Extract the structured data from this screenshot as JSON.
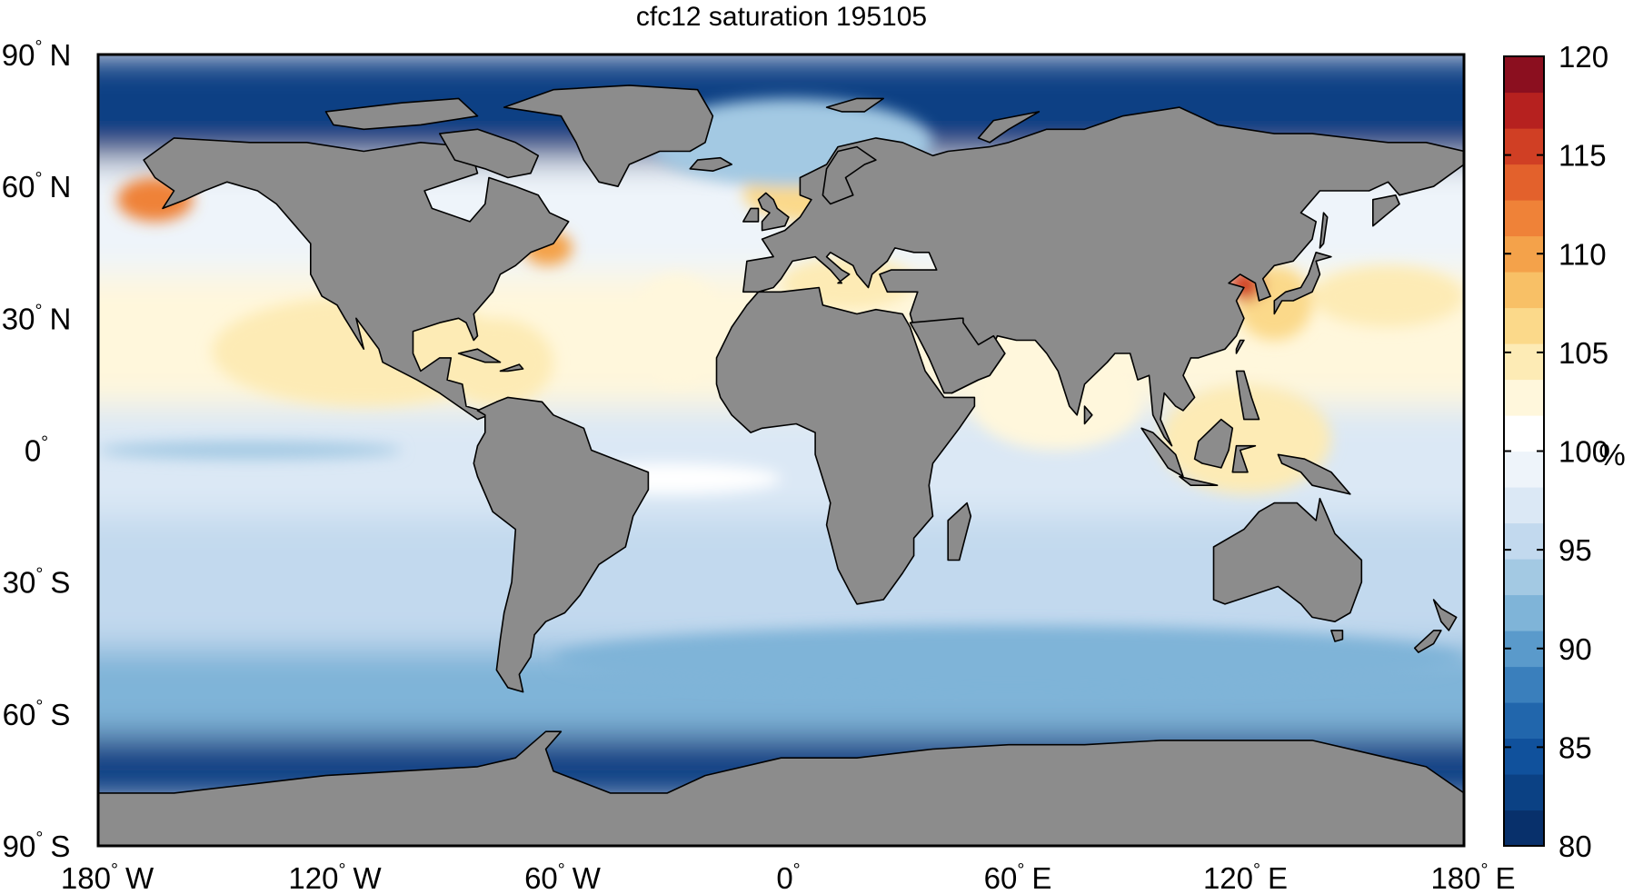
{
  "title": "cfc12 saturation 195105",
  "map": {
    "projection": "equirectangular",
    "lon_range": [
      -180,
      180
    ],
    "lat_range": [
      -90,
      90
    ],
    "land_color": "#8c8c8c",
    "coastline_color": "#000000",
    "missing_color": "#ffffff"
  },
  "axes": {
    "x_ticks": [
      {
        "deg": "180",
        "hemi": "W",
        "value": -180
      },
      {
        "deg": "120",
        "hemi": "W",
        "value": -120
      },
      {
        "deg": "60",
        "hemi": "W",
        "value": -60
      },
      {
        "deg": "0",
        "hemi": "",
        "value": 0
      },
      {
        "deg": "60",
        "hemi": "E",
        "value": 60
      },
      {
        "deg": "120",
        "hemi": "E",
        "value": 120
      },
      {
        "deg": "180",
        "hemi": "E",
        "value": 180
      }
    ],
    "y_ticks": [
      {
        "deg": "90",
        "hemi": "N",
        "value": 90
      },
      {
        "deg": "60",
        "hemi": "N",
        "value": 60
      },
      {
        "deg": "30",
        "hemi": "N",
        "value": 30
      },
      {
        "deg": "0",
        "hemi": "",
        "value": 0
      },
      {
        "deg": "30",
        "hemi": "S",
        "value": -30
      },
      {
        "deg": "60",
        "hemi": "S",
        "value": -60
      },
      {
        "deg": "90",
        "hemi": "S",
        "value": -90
      }
    ],
    "degree_symbol": "°"
  },
  "colorbar": {
    "min": 80,
    "max": 120,
    "ticks": [
      "80",
      "85",
      "90",
      "95",
      "100",
      "105",
      "110",
      "115",
      "120"
    ],
    "unit": "%",
    "steps": [
      "#08306b",
      "#0b4184",
      "#10519c",
      "#2166ac",
      "#3a7fbc",
      "#5a9acb",
      "#7fb4d8",
      "#a3c9e3",
      "#c2d9ee",
      "#dbe8f5",
      "#eef4fa",
      "#ffffff",
      "#fff7dc",
      "#fdebb5",
      "#fbd98a",
      "#f8c066",
      "#f4a24a",
      "#ef8238",
      "#e3612c",
      "#d03f24",
      "#b6211f",
      "#8b0f1f"
    ]
  },
  "chart_data": {
    "type": "heatmap",
    "title": "cfc12 saturation 195105",
    "xlabel": "",
    "ylabel": "",
    "xlim": [
      -180,
      180
    ],
    "ylim": [
      -90,
      90
    ],
    "colorbar_range": [
      80,
      120
    ],
    "colorbar_unit": "%",
    "ocean_regions": [
      {
        "lon": [
          -180,
          180
        ],
        "lat": [
          66,
          90
        ],
        "value": 82
      },
      {
        "lon": [
          -180,
          180
        ],
        "lat": [
          40,
          66
        ],
        "value": 99
      },
      {
        "lon": [
          -180,
          180
        ],
        "lat": [
          10,
          40
        ],
        "value": 103
      },
      {
        "lon": [
          -180,
          180
        ],
        "lat": [
          -15,
          10
        ],
        "value": 98
      },
      {
        "lon": [
          -180,
          180
        ],
        "lat": [
          -45,
          -15
        ],
        "value": 96
      },
      {
        "lon": [
          -180,
          180
        ],
        "lat": [
          -65,
          -45
        ],
        "value": 91
      },
      {
        "lon": [
          -180,
          180
        ],
        "lat": [
          -80,
          -65
        ],
        "value": 83
      },
      {
        "lon": [
          -175,
          -155
        ],
        "lat": [
          52,
          62
        ],
        "value": 111
      },
      {
        "lon": [
          -68,
          -55
        ],
        "lat": [
          42,
          50
        ],
        "value": 110
      },
      {
        "lon": [
          -150,
          -70
        ],
        "lat": [
          10,
          35
        ],
        "value": 104
      },
      {
        "lon": [
          -90,
          -60
        ],
        "lat": [
          10,
          30
        ],
        "value": 104
      },
      {
        "lon": [
          -40,
          -15
        ],
        "lat": [
          15,
          40
        ],
        "value": 103
      },
      {
        "lon": [
          0,
          35
        ],
        "lat": [
          32,
          44
        ],
        "value": 104
      },
      {
        "lon": [
          -10,
          25
        ],
        "lat": [
          52,
          65
        ],
        "value": 106
      },
      {
        "lon": [
          120,
          140
        ],
        "lat": [
          25,
          42
        ],
        "value": 107
      },
      {
        "lon": [
          118,
          127
        ],
        "lat": [
          34,
          41
        ],
        "value": 115
      },
      {
        "lon": [
          140,
          180
        ],
        "lat": [
          28,
          42
        ],
        "value": 105
      },
      {
        "lon": [
          100,
          145
        ],
        "lat": [
          -10,
          15
        ],
        "value": 104
      },
      {
        "lon": [
          50,
          95
        ],
        "lat": [
          0,
          22
        ],
        "value": 103
      },
      {
        "lon": [
          -180,
          -100
        ],
        "lat": [
          -2,
          2
        ],
        "value": 94
      },
      {
        "lon": [
          -60,
          0
        ],
        "lat": [
          -10,
          -3
        ],
        "value": 100
      },
      {
        "lon": [
          -60,
          180
        ],
        "lat": [
          -55,
          -40
        ],
        "value": 92
      },
      {
        "lon": [
          -35,
          40
        ],
        "lat": [
          60,
          80
        ],
        "value": 94
      }
    ],
    "data_value_max": 120,
    "data_value_min": 80
  }
}
